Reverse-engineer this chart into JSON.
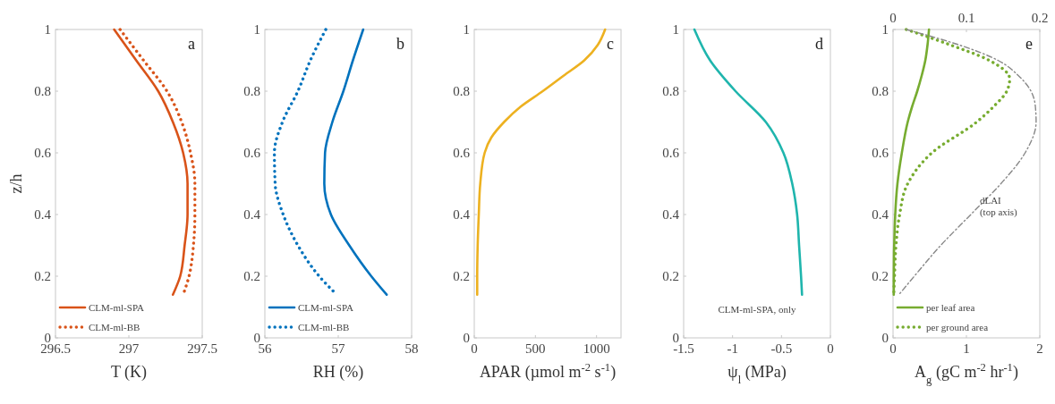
{
  "chart_data": [
    {
      "type": "line",
      "title": "a",
      "xlabel": "T (K)",
      "ylabel": "z/h",
      "xlim": [
        296.5,
        297.5
      ],
      "xticks": [
        296.5,
        297,
        297.5
      ],
      "ylim": [
        0,
        1
      ],
      "yticks": [
        0,
        0.2,
        0.4,
        0.6,
        0.8,
        1
      ],
      "legend": "bottom left",
      "series": [
        {
          "name": "CLM-ml-SPA",
          "color": "#d95319",
          "line_style": "solid",
          "x": [
            296.9,
            297.05,
            297.2,
            297.3,
            297.37,
            297.4,
            297.4,
            297.38,
            297.35,
            297.3
          ],
          "values": [
            1,
            0.9,
            0.8,
            0.7,
            0.6,
            0.5,
            0.4,
            0.3,
            0.2,
            0.14
          ]
        },
        {
          "name": "CLM-ml-BB",
          "color": "#d95319",
          "line_style": "dotted",
          "x": [
            296.94,
            297.1,
            297.26,
            297.36,
            297.42,
            297.45,
            297.45,
            297.44,
            297.41,
            297.37
          ],
          "values": [
            1,
            0.9,
            0.8,
            0.7,
            0.6,
            0.5,
            0.4,
            0.3,
            0.2,
            0.14
          ]
        }
      ]
    },
    {
      "type": "line",
      "title": "b",
      "xlabel": "RH (%)",
      "xlim": [
        56,
        58
      ],
      "xticks": [
        56,
        57,
        58
      ],
      "ylim": [
        0,
        1
      ],
      "yticks": [
        0,
        0.2,
        0.4,
        0.6,
        0.8,
        1
      ],
      "legend": "bottom left",
      "series": [
        {
          "name": "CLM-ml-SPA",
          "color": "#0072bd",
          "line_style": "solid",
          "x": [
            57.34,
            57.2,
            57.07,
            56.92,
            56.82,
            56.81,
            56.9,
            57.15,
            57.45,
            57.66
          ],
          "values": [
            1,
            0.9,
            0.8,
            0.7,
            0.6,
            0.5,
            0.4,
            0.3,
            0.2,
            0.14
          ]
        },
        {
          "name": "CLM-ml-BB",
          "color": "#0072bd",
          "line_style": "dotted",
          "x": [
            56.83,
            56.62,
            56.45,
            56.24,
            56.13,
            56.14,
            56.25,
            56.45,
            56.74,
            56.98
          ],
          "values": [
            1,
            0.9,
            0.8,
            0.7,
            0.6,
            0.5,
            0.4,
            0.3,
            0.2,
            0.14
          ]
        }
      ]
    },
    {
      "type": "line",
      "title": "c",
      "xlabel": "APAR (µmol m$^{-2}$ s$^{-1}$)",
      "xlim": [
        0,
        1200
      ],
      "xticks": [
        0,
        500,
        1000
      ],
      "ylim": [
        0,
        1
      ],
      "yticks": [
        0,
        0.2,
        0.4,
        0.6,
        0.8,
        1
      ],
      "series": [
        {
          "color": "#edb120",
          "line_style": "solid",
          "x": [
            1070,
            1010,
            900,
            730,
            560,
            380,
            244,
            140,
            85,
            49,
            37,
            28,
            24,
            24
          ],
          "values": [
            1,
            0.95,
            0.9,
            0.85,
            0.8,
            0.75,
            0.7,
            0.65,
            0.6,
            0.5,
            0.4,
            0.3,
            0.2,
            0.14
          ]
        }
      ]
    },
    {
      "type": "line",
      "title": "d",
      "xlabel": "ψ$_{l}$ (MPa)",
      "xlim": [
        -1.5,
        0
      ],
      "xticks": [
        -1.5,
        -1,
        -0.5,
        0
      ],
      "ylim": [
        0,
        1
      ],
      "yticks": [
        0,
        0.2,
        0.4,
        0.6,
        0.8,
        1
      ],
      "annotations": [
        "CLM-ml-SPA, only"
      ],
      "series": [
        {
          "color": "#1fb5ad",
          "line_style": "solid",
          "x": [
            -1.39,
            -1.23,
            -0.97,
            -0.66,
            -0.48,
            -0.39,
            -0.34,
            -0.32,
            -0.3,
            -0.29
          ],
          "values": [
            1,
            0.9,
            0.8,
            0.7,
            0.6,
            0.5,
            0.4,
            0.3,
            0.2,
            0.14
          ]
        }
      ]
    },
    {
      "type": "line",
      "title": "e",
      "xlabel": "A$_{g}$ (gC m$^{-2}$ hr$^{-1}$)",
      "xlim": [
        0,
        2
      ],
      "xticks": [
        0,
        1,
        2
      ],
      "x2lim": [
        0,
        0.2
      ],
      "x2ticks": [
        0,
        0.1,
        0.2
      ],
      "ylim": [
        0,
        1
      ],
      "yticks": [
        0,
        0.2,
        0.4,
        0.6,
        0.8,
        1
      ],
      "legend": "bottom left",
      "series": [
        {
          "name": "per leaf area",
          "color": "#77ac30",
          "line_style": "solid",
          "x": [
            0.49,
            0.47,
            0.44,
            0.39,
            0.33,
            0.26,
            0.2,
            0.12,
            0.06,
            0.03,
            0.01,
            0.01
          ],
          "values": [
            1,
            0.95,
            0.9,
            0.85,
            0.8,
            0.75,
            0.7,
            0.6,
            0.5,
            0.4,
            0.2,
            0.14
          ]
        },
        {
          "name": "per ground area",
          "color": "#77ac30",
          "line_style": "dotted",
          "x": [
            0.18,
            0.78,
            1.31,
            1.59,
            1.55,
            1.37,
            1.14,
            0.53,
            0.2,
            0.09,
            0.04,
            0.02,
            0.01
          ],
          "values": [
            1,
            0.95,
            0.9,
            0.84,
            0.8,
            0.75,
            0.7,
            0.6,
            0.5,
            0.4,
            0.3,
            0.2,
            0.14
          ]
        },
        {
          "name": "dLAI (top axis)",
          "color": "#888888",
          "line_style": "dashed",
          "axis": "x2",
          "x": [
            0.018,
            0.09,
            0.143,
            0.171,
            0.188,
            0.194,
            0.195,
            0.18,
            0.147,
            0.106,
            0.065,
            0.029,
            0.008
          ],
          "values": [
            1,
            0.95,
            0.9,
            0.85,
            0.8,
            0.75,
            0.7,
            0.6,
            0.5,
            0.4,
            0.3,
            0.2,
            0.14
          ]
        }
      ]
    }
  ]
}
